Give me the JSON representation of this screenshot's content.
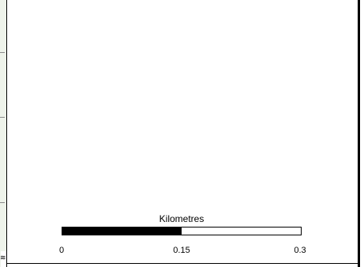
{
  "map": {
    "scalebar": {
      "title": "Kilometres",
      "min": 0,
      "max": 0.3,
      "filled_fraction": 0.5,
      "labels": [
        "0",
        "0.15",
        "0.3"
      ],
      "fill_color": "#000000",
      "empty_color": "#ffffff"
    },
    "left_strip": {
      "background_color": "#eef3ea",
      "glyph": "≋"
    }
  }
}
